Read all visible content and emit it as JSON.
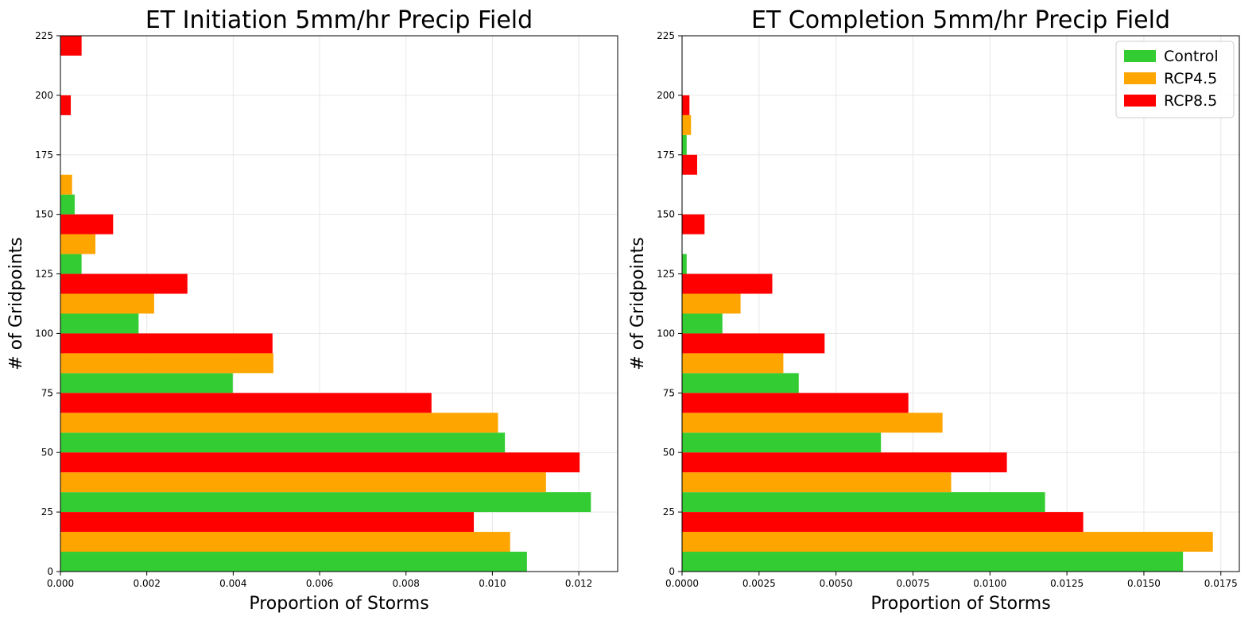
{
  "colors": {
    "control": "#33cc33",
    "rcp45": "#ffa500",
    "rcp85": "#ff0000",
    "grid": "#e6e6e6"
  },
  "chart_data": [
    {
      "type": "bar",
      "orientation": "horizontal",
      "title": "ET Initiation 5mm/hr Precip Field",
      "xlabel": "Proportion of Storms",
      "ylabel": "# of Gridpoints",
      "xlim": [
        0,
        0.0129
      ],
      "ylim": [
        0,
        225
      ],
      "xticks": [
        0,
        0.002,
        0.004,
        0.006,
        0.008,
        0.01,
        0.012
      ],
      "xtick_labels": [
        "0.000",
        "0.002",
        "0.004",
        "0.006",
        "0.008",
        "0.010",
        "0.012"
      ],
      "yticks": [
        0,
        25,
        50,
        75,
        100,
        125,
        150,
        175,
        200,
        225
      ],
      "ytick_labels": [
        "0",
        "25",
        "50",
        "75",
        "100",
        "125",
        "150",
        "175",
        "200",
        "225"
      ],
      "bin_starts": [
        0,
        25,
        50,
        75,
        100,
        125,
        150,
        175,
        200
      ],
      "bin_width": 25,
      "grid": true,
      "legend": null,
      "series": [
        {
          "key": "control",
          "values": [
            0.0108,
            0.01228,
            0.01029,
            0.00399,
            0.00181,
            0.00049,
            0.00033,
            0,
            0
          ]
        },
        {
          "key": "rcp45",
          "values": [
            0.01041,
            0.01124,
            0.01013,
            0.00493,
            0.00217,
            0.00081,
            0.00027,
            0,
            0
          ]
        },
        {
          "key": "rcp85",
          "values": [
            0.00957,
            0.01202,
            0.00859,
            0.00491,
            0.00294,
            0.00122,
            0,
            0.00024,
            0.00049
          ]
        }
      ]
    },
    {
      "type": "bar",
      "orientation": "horizontal",
      "title": "ET Completion 5mm/hr Precip Field",
      "xlabel": "Proportion of Storms",
      "ylabel": "# of Gridpoints",
      "xlim": [
        0,
        0.0181
      ],
      "ylim": [
        0,
        225
      ],
      "xticks": [
        0,
        0.0025,
        0.005,
        0.0075,
        0.01,
        0.0125,
        0.015,
        0.0175
      ],
      "xtick_labels": [
        "0.0000",
        "0.0025",
        "0.0050",
        "0.0075",
        "0.0100",
        "0.0125",
        "0.0150",
        "0.0175"
      ],
      "yticks": [
        0,
        25,
        50,
        75,
        100,
        125,
        150,
        175,
        200,
        225
      ],
      "ytick_labels": [
        "0",
        "25",
        "50",
        "75",
        "100",
        "125",
        "150",
        "175",
        "200",
        "225"
      ],
      "bin_starts": [
        0,
        25,
        50,
        75,
        100,
        125,
        150,
        175,
        200
      ],
      "bin_width": 25,
      "grid": true,
      "legend": "top-right",
      "series": [
        {
          "key": "control",
          "name": "Control",
          "values": [
            0.01627,
            0.01179,
            0.00646,
            0.00379,
            0.00131,
            0.00015,
            0,
            0.00015,
            0
          ]
        },
        {
          "key": "rcp45",
          "name": "RCP4.5",
          "values": [
            0.01724,
            0.00874,
            0.00846,
            0.00329,
            0.0019,
            0,
            0,
            0.00029,
            0
          ]
        },
        {
          "key": "rcp85",
          "name": "RCP8.5",
          "values": [
            0.01303,
            0.01055,
            0.00735,
            0.00463,
            0.00293,
            0.00073,
            0.00049,
            0.00024,
            0
          ]
        }
      ]
    }
  ]
}
